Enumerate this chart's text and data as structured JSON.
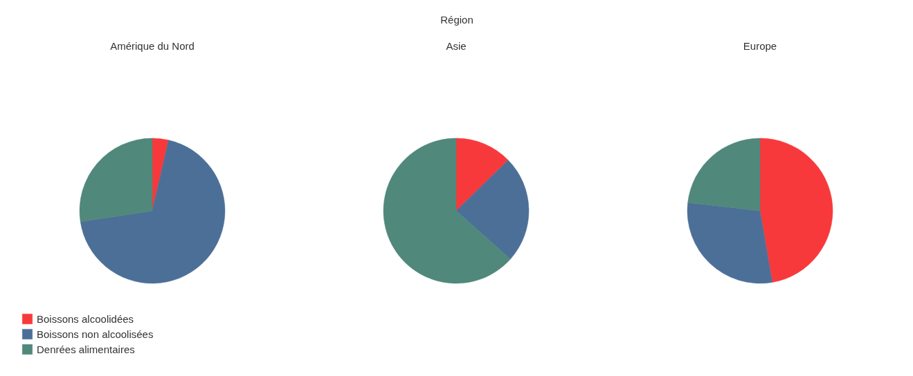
{
  "chart_data": [
    {
      "type": "pie",
      "title": "Amérique du Nord",
      "annotations": [
        "Région"
      ],
      "legend": "bottom left",
      "categories": [
        "Boissons alcoolidées",
        "Boissons non alcoolisées",
        "Denrées alimentaires"
      ],
      "values": [
        3.6,
        69.0,
        27.4
      ],
      "colors": [
        "#f8393b",
        "#4c6f97",
        "#50887b"
      ]
    },
    {
      "type": "pie",
      "title": "Asie",
      "categories": [
        null,
        null,
        null
      ],
      "values": [
        12.7,
        23.9,
        63.4
      ],
      "colors": [
        "#f8393b",
        "#4c6f97",
        "#50887b"
      ]
    },
    {
      "type": "pie",
      "title": "Europe",
      "categories": [
        null,
        null,
        null
      ],
      "values": [
        47.3,
        29.5,
        23.2
      ],
      "colors": [
        "#f8393b",
        "#4c6f97",
        "#50887b"
      ]
    }
  ]
}
